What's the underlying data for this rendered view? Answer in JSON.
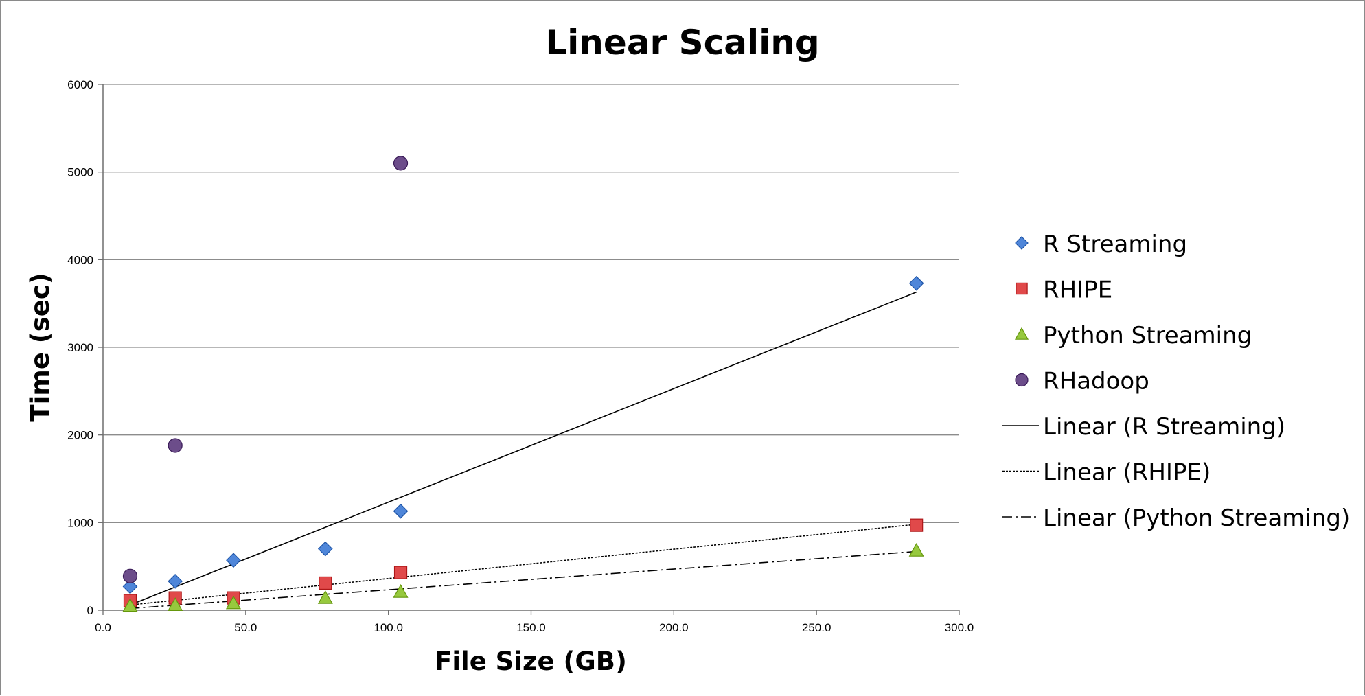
{
  "chart_data": {
    "type": "scatter",
    "title": "Linear Scaling",
    "xlabel": "File Size (GB)",
    "ylabel": "Time (sec)",
    "xlim": [
      0,
      300
    ],
    "ylim": [
      0,
      6000
    ],
    "x_ticks": [
      "0.0",
      "50.0",
      "100.0",
      "150.0",
      "200.0",
      "250.0",
      "300.0"
    ],
    "y_ticks": [
      "0",
      "1000",
      "2000",
      "3000",
      "4000",
      "5000",
      "6000"
    ],
    "grid": "horizontal",
    "legend_position": "right",
    "series": [
      {
        "name": "R Streaming",
        "marker": "diamond",
        "color": "#4f86d9",
        "x": [
          9.5,
          25.3,
          45.7,
          77.9,
          104.3,
          285.0
        ],
        "y": [
          270,
          330,
          570,
          700,
          1130,
          3730
        ]
      },
      {
        "name": "RHIPE",
        "marker": "square",
        "color": "#e0494a",
        "x": [
          9.5,
          25.3,
          45.7,
          77.9,
          104.3,
          285.0
        ],
        "y": [
          110,
          140,
          140,
          310,
          430,
          970
        ]
      },
      {
        "name": "Python Streaming",
        "marker": "triangle",
        "color": "#97c93e",
        "x": [
          9.5,
          25.3,
          45.7,
          77.9,
          104.3,
          285.0
        ],
        "y": [
          50,
          60,
          80,
          140,
          210,
          680
        ]
      },
      {
        "name": "RHadoop",
        "marker": "circle",
        "color": "#6c4d8a",
        "x": [
          9.5,
          25.3,
          104.3
        ],
        "y": [
          390,
          1880,
          5100
        ]
      }
    ],
    "trendlines": [
      {
        "name": "Linear (R Streaming)",
        "style": "solid",
        "x": [
          9.5,
          285.0
        ],
        "y": [
          60,
          3630
        ]
      },
      {
        "name": "Linear (RHIPE)",
        "style": "dotted",
        "x": [
          9.5,
          285.0
        ],
        "y": [
          60,
          980
        ]
      },
      {
        "name": "Linear (Python Streaming)",
        "style": "dashdot",
        "x": [
          9.5,
          285.0
        ],
        "y": [
          20,
          670
        ]
      }
    ]
  }
}
